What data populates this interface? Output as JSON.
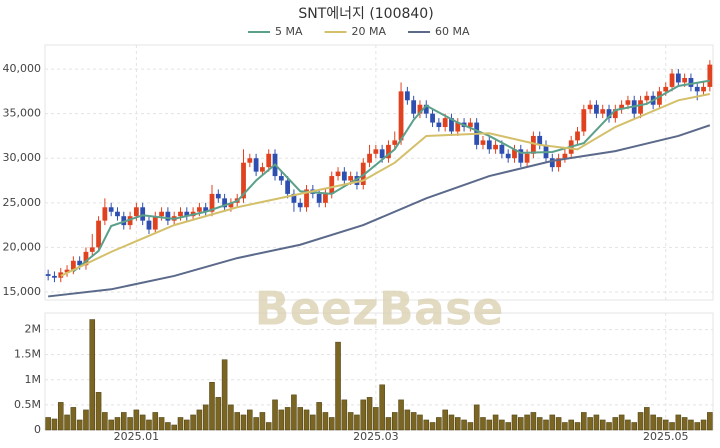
{
  "chart_data": {
    "type": "candlestick",
    "title": "SNT에너지 (100840)",
    "watermark": "BeezBase",
    "categories": [
      null,
      null,
      null,
      null,
      null,
      null,
      null,
      null,
      null,
      null,
      null,
      null,
      null,
      null,
      "2025.01",
      null,
      null,
      null,
      null,
      null,
      null,
      null,
      null,
      null,
      null,
      null,
      null,
      null,
      null,
      null,
      null,
      null,
      null,
      null,
      null,
      null,
      null,
      null,
      null,
      null,
      null,
      null,
      null,
      null,
      null,
      null,
      null,
      null,
      null,
      null,
      null,
      null,
      "2025.03",
      null,
      null,
      null,
      null,
      null,
      null,
      null,
      null,
      null,
      null,
      null,
      null,
      null,
      null,
      null,
      null,
      null,
      null,
      null,
      null,
      null,
      null,
      null,
      null,
      null,
      null,
      null,
      null,
      null,
      null,
      null,
      null,
      null,
      null,
      null,
      null,
      null,
      null,
      null,
      null,
      null,
      null,
      null,
      null,
      null,
      "2025.05",
      null,
      null,
      null,
      null,
      null,
      null,
      null
    ],
    "open": [
      17000,
      16800,
      16600,
      17200,
      17500,
      18500,
      18000,
      19500,
      20000,
      23000,
      24500,
      24000,
      23500,
      22500,
      23500,
      24500,
      23000,
      22000,
      23500,
      24000,
      23000,
      23500,
      24000,
      23500,
      24000,
      24500,
      24000,
      26000,
      25500,
      24500,
      25000,
      25500,
      29500,
      30000,
      28500,
      29000,
      30500,
      28000,
      27500,
      26000,
      25000,
      24500,
      26500,
      26000,
      25000,
      26000,
      28000,
      28500,
      27500,
      28000,
      27000,
      29500,
      30500,
      31000,
      30000,
      31500,
      32000,
      37500,
      36500,
      35000,
      36000,
      35000,
      34000,
      33500,
      34500,
      33000,
      34000,
      33500,
      34000,
      31500,
      32000,
      31000,
      31500,
      30500,
      30000,
      31000,
      29500,
      30500,
      32500,
      31500,
      30000,
      29000,
      30000,
      30500,
      32000,
      33000,
      35500,
      36000,
      35000,
      35500,
      34500,
      35500,
      36000,
      36500,
      35000,
      36500,
      37000,
      36000,
      37500,
      38000,
      39500,
      38500,
      39000,
      38000,
      37500,
      38000
    ],
    "high": [
      17500,
      17300,
      17700,
      18000,
      19000,
      19000,
      20000,
      21500,
      23500,
      25500,
      25000,
      24500,
      24000,
      24000,
      25000,
      25000,
      23500,
      24000,
      24500,
      24500,
      24000,
      24500,
      24500,
      24500,
      25000,
      25000,
      27000,
      26500,
      26000,
      25500,
      26000,
      31000,
      30500,
      30500,
      29500,
      31000,
      31000,
      28500,
      28000,
      26500,
      25500,
      27000,
      27000,
      26500,
      26500,
      28500,
      29000,
      29000,
      28500,
      28500,
      30000,
      31500,
      31500,
      31500,
      32000,
      33000,
      38500,
      38000,
      37000,
      36500,
      36500,
      35500,
      34500,
      35000,
      35000,
      34500,
      34500,
      34500,
      34500,
      32500,
      32500,
      32000,
      32000,
      31000,
      31500,
      31500,
      31000,
      33000,
      33000,
      32000,
      30500,
      30500,
      31000,
      32500,
      33500,
      36000,
      36500,
      36500,
      36000,
      36000,
      36000,
      36500,
      37000,
      37000,
      37000,
      37500,
      37500,
      38000,
      38500,
      40000,
      40000,
      39500,
      39500,
      38500,
      38500,
      41000
    ],
    "low": [
      16300,
      16100,
      16100,
      16700,
      17000,
      17500,
      17500,
      19000,
      19500,
      22500,
      23500,
      23000,
      22000,
      22000,
      23000,
      22500,
      21500,
      21500,
      23000,
      22500,
      22500,
      23000,
      23000,
      23000,
      23500,
      23500,
      23500,
      25000,
      24000,
      24000,
      24500,
      25000,
      29000,
      28000,
      28000,
      28500,
      27500,
      27000,
      25500,
      24000,
      24000,
      24000,
      25500,
      24500,
      24500,
      25500,
      27500,
      27000,
      27000,
      26500,
      26500,
      29000,
      30000,
      29500,
      29500,
      31000,
      31500,
      36000,
      34500,
      34500,
      34500,
      33500,
      33000,
      33000,
      32500,
      32500,
      33000,
      33000,
      31000,
      31000,
      30500,
      30500,
      30000,
      29500,
      29500,
      29000,
      29000,
      30000,
      31000,
      29500,
      28500,
      28500,
      29500,
      30000,
      31500,
      32500,
      35000,
      34500,
      34500,
      34000,
      34000,
      35000,
      35500,
      34500,
      34500,
      36000,
      35500,
      35500,
      37000,
      37500,
      38000,
      38000,
      37500,
      36500,
      37000,
      37500
    ],
    "close": [
      16800,
      16600,
      17200,
      17500,
      18500,
      18000,
      19500,
      20000,
      23000,
      24500,
      24000,
      23500,
      22500,
      23500,
      24500,
      23000,
      22000,
      23500,
      24000,
      23000,
      23500,
      24000,
      23500,
      24000,
      24500,
      24000,
      26000,
      25500,
      24500,
      25000,
      25500,
      29500,
      30000,
      28500,
      29000,
      30500,
      28000,
      27500,
      26000,
      25000,
      24500,
      26500,
      26000,
      25000,
      26000,
      28000,
      28500,
      27500,
      28000,
      27000,
      29500,
      30500,
      31000,
      30000,
      31500,
      32000,
      37500,
      36500,
      35000,
      36000,
      35000,
      34000,
      33500,
      34500,
      33000,
      34000,
      33500,
      34000,
      31500,
      32000,
      31000,
      31500,
      30500,
      30000,
      31000,
      29500,
      30500,
      32500,
      31500,
      30000,
      29000,
      30000,
      30500,
      32000,
      33000,
      35500,
      36000,
      35000,
      35500,
      34500,
      35500,
      36000,
      36500,
      35000,
      36500,
      37000,
      36000,
      37500,
      38000,
      39500,
      38500,
      39000,
      38000,
      37500,
      38000,
      40500
    ],
    "volume": [
      250000,
      220000,
      550000,
      300000,
      450000,
      200000,
      400000,
      2200000,
      750000,
      350000,
      200000,
      250000,
      350000,
      250000,
      400000,
      300000,
      200000,
      350000,
      250000,
      150000,
      100000,
      250000,
      200000,
      300000,
      400000,
      500000,
      950000,
      650000,
      1400000,
      500000,
      350000,
      300000,
      400000,
      250000,
      350000,
      150000,
      600000,
      400000,
      450000,
      700000,
      450000,
      400000,
      300000,
      550000,
      350000,
      250000,
      1750000,
      600000,
      350000,
      300000,
      600000,
      650000,
      450000,
      900000,
      250000,
      350000,
      600000,
      400000,
      350000,
      300000,
      200000,
      150000,
      250000,
      400000,
      300000,
      250000,
      200000,
      150000,
      500000,
      250000,
      200000,
      300000,
      200000,
      150000,
      300000,
      250000,
      300000,
      350000,
      250000,
      200000,
      300000,
      250000,
      150000,
      200000,
      150000,
      350000,
      250000,
      300000,
      200000,
      150000,
      250000,
      300000,
      200000,
      150000,
      350000,
      450000,
      300000,
      250000,
      200000,
      150000,
      300000,
      250000,
      200000,
      150000,
      200000,
      350000
    ],
    "up_color": "#e0421f",
    "down_color": "#2f4fb0",
    "volume_color": "#7a6622",
    "series": [
      {
        "name": "5 MA",
        "color": "#5aa08a",
        "x": [
          4,
          8,
          10,
          15,
          20,
          25,
          30,
          33,
          36,
          40,
          45,
          50,
          55,
          58,
          60,
          65,
          70,
          75,
          80,
          85,
          90,
          95,
          100,
          105
        ],
        "values": [
          17300,
          19600,
          22400,
          23600,
          23200,
          24000,
          25200,
          27500,
          29300,
          26300,
          26000,
          28100,
          31000,
          34300,
          35900,
          34000,
          32500,
          30600,
          30700,
          31700,
          35400,
          36100,
          38100,
          38700
        ]
      },
      {
        "name": "20 MA",
        "color": "#d4c06a",
        "x": [
          2,
          10,
          20,
          30,
          40,
          50,
          55,
          60,
          70,
          78,
          84,
          90,
          100,
          105
        ],
        "values": [
          16800,
          19500,
          22500,
          24500,
          26000,
          27500,
          29500,
          32500,
          32800,
          31500,
          31000,
          33500,
          36500,
          37200
        ]
      },
      {
        "name": "60 MA",
        "color": "#5b6a8a",
        "x": [
          0,
          10,
          20,
          30,
          40,
          50,
          60,
          70,
          80,
          90,
          100,
          105
        ],
        "values": [
          14500,
          15300,
          16800,
          18800,
          20300,
          22500,
          25500,
          28000,
          29700,
          30800,
          32500,
          33700
        ]
      }
    ],
    "ylim": [
      14100,
      42700
    ],
    "yticks": [
      {
        "value": 15000,
        "label": "15,000"
      },
      {
        "value": 20000,
        "label": "20,000"
      },
      {
        "value": 25000,
        "label": "25,000"
      },
      {
        "value": 30000,
        "label": "30,000"
      },
      {
        "value": 35000,
        "label": "35,000"
      },
      {
        "value": 40000,
        "label": "40,000"
      }
    ],
    "y2lim": [
      0,
      2330000
    ],
    "y2ticks": [
      0,
      {
        "value": 500000,
        "label": "0.5M"
      },
      {
        "value": 1000000,
        "label": "1M"
      },
      {
        "value": 1500000,
        "label": "1.5M"
      },
      {
        "value": 2000000,
        "label": "2M"
      }
    ],
    "grid": true
  }
}
